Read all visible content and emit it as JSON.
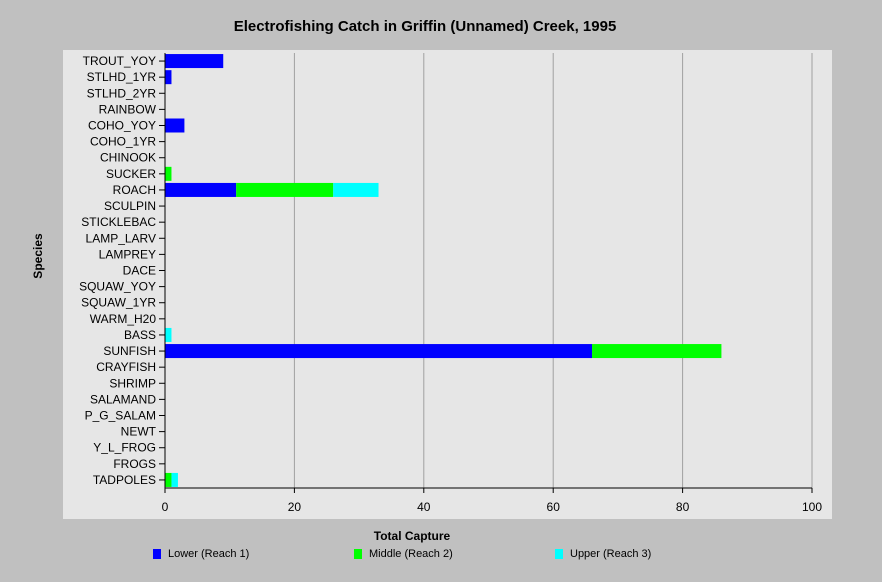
{
  "chart_data": {
    "type": "bar",
    "orientation": "horizontal",
    "stacked": true,
    "title": "Electrofishing Catch in Griffin (Unnamed) Creek, 1995",
    "xlabel": "Total Capture",
    "ylabel": "Species",
    "xlim": [
      0,
      100
    ],
    "xticks": [
      0,
      20,
      40,
      60,
      80,
      100
    ],
    "grid": "vertical",
    "legend_position": "bottom",
    "categories": [
      "TROUT_YOY",
      "STLHD_1YR",
      "STLHD_2YR",
      "RAINBOW",
      "COHO_YOY",
      "COHO_1YR",
      "CHINOOK",
      "SUCKER",
      "ROACH",
      "SCULPIN",
      "STICKLEBAC",
      "LAMP_LARV",
      "LAMPREY",
      "DACE",
      "SQUAW_YOY",
      "SQUAW_1YR",
      "WARM_H20",
      "BASS",
      "SUNFISH",
      "CRAYFISH",
      "SHRIMP",
      "SALAMAND",
      "P_G_SALAM",
      "NEWT",
      "Y_L_FROG",
      "FROGS",
      "TADPOLES"
    ],
    "series": [
      {
        "name": "Lower (Reach 1)",
        "color": "#0000ff",
        "values": [
          9,
          1,
          0,
          0,
          3,
          0,
          0,
          0,
          11,
          0,
          0,
          0,
          0,
          0,
          0,
          0,
          0,
          0,
          66,
          0,
          0,
          0,
          0,
          0,
          0,
          0,
          0
        ]
      },
      {
        "name": "Middle (Reach 2)",
        "color": "#00ff00",
        "values": [
          0,
          0,
          0,
          0,
          0,
          0,
          0,
          1,
          15,
          0,
          0,
          0,
          0,
          0,
          0,
          0,
          0,
          0,
          20,
          0,
          0,
          0,
          0,
          0,
          0,
          0,
          1
        ]
      },
      {
        "name": "Upper (Reach 3)",
        "color": "#00ffff",
        "values": [
          0,
          0,
          0,
          0,
          0,
          0,
          0,
          0,
          7,
          0,
          0,
          0,
          0,
          0,
          0,
          0,
          0,
          1,
          0,
          0,
          0,
          0,
          0,
          0,
          0,
          0,
          1
        ]
      }
    ]
  }
}
